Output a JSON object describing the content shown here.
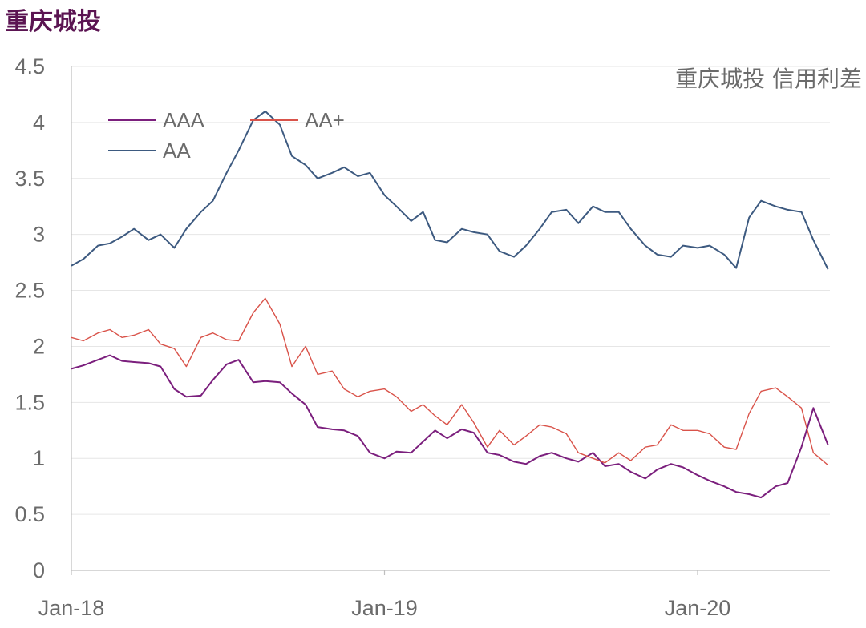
{
  "page_title": "重庆城投",
  "chart_data": {
    "type": "line",
    "title": "重庆城投 信用利差",
    "xlabel": "",
    "ylabel": "",
    "ylim": [
      0,
      4.5
    ],
    "yticks": [
      "0",
      "0.5",
      "1",
      "1.5",
      "2",
      "2.5",
      "3",
      "3.5",
      "4",
      "4.5"
    ],
    "xticks": [
      {
        "label": "Jan-18",
        "date": "2018-01-01"
      },
      {
        "label": "Jan-19",
        "date": "2019-01-01"
      },
      {
        "label": "Jan-20",
        "date": "2020-01-01"
      }
    ],
    "x_range": [
      "2018-01-01",
      "2020-06-01"
    ],
    "grid": true,
    "legend_position": "top-left",
    "series": [
      {
        "name": "AAA",
        "color": "#7b1f7d",
        "points": [
          [
            "2018-01-01",
            1.8
          ],
          [
            "2018-01-15",
            1.83
          ],
          [
            "2018-02-01",
            1.88
          ],
          [
            "2018-02-15",
            1.92
          ],
          [
            "2018-03-01",
            1.87
          ],
          [
            "2018-03-15",
            1.86
          ],
          [
            "2018-04-01",
            1.85
          ],
          [
            "2018-04-15",
            1.82
          ],
          [
            "2018-05-01",
            1.62
          ],
          [
            "2018-05-15",
            1.55
          ],
          [
            "2018-06-01",
            1.56
          ],
          [
            "2018-06-15",
            1.7
          ],
          [
            "2018-07-01",
            1.84
          ],
          [
            "2018-07-15",
            1.88
          ],
          [
            "2018-08-01",
            1.68
          ],
          [
            "2018-08-15",
            1.69
          ],
          [
            "2018-09-01",
            1.68
          ],
          [
            "2018-09-15",
            1.58
          ],
          [
            "2018-10-01",
            1.48
          ],
          [
            "2018-10-15",
            1.28
          ],
          [
            "2018-11-01",
            1.26
          ],
          [
            "2018-11-15",
            1.25
          ],
          [
            "2018-12-01",
            1.2
          ],
          [
            "2018-12-15",
            1.05
          ],
          [
            "2019-01-01",
            1.0
          ],
          [
            "2019-01-15",
            1.06
          ],
          [
            "2019-02-01",
            1.05
          ],
          [
            "2019-02-15",
            1.15
          ],
          [
            "2019-03-01",
            1.25
          ],
          [
            "2019-03-15",
            1.18
          ],
          [
            "2019-04-01",
            1.26
          ],
          [
            "2019-04-15",
            1.23
          ],
          [
            "2019-05-01",
            1.05
          ],
          [
            "2019-05-15",
            1.03
          ],
          [
            "2019-06-01",
            0.97
          ],
          [
            "2019-06-15",
            0.95
          ],
          [
            "2019-07-01",
            1.02
          ],
          [
            "2019-07-15",
            1.05
          ],
          [
            "2019-08-01",
            1.0
          ],
          [
            "2019-08-15",
            0.97
          ],
          [
            "2019-09-01",
            1.05
          ],
          [
            "2019-09-15",
            0.93
          ],
          [
            "2019-10-01",
            0.95
          ],
          [
            "2019-10-15",
            0.88
          ],
          [
            "2019-11-01",
            0.82
          ],
          [
            "2019-11-15",
            0.9
          ],
          [
            "2019-12-01",
            0.95
          ],
          [
            "2019-12-15",
            0.92
          ],
          [
            "2020-01-01",
            0.85
          ],
          [
            "2020-01-15",
            0.8
          ],
          [
            "2020-02-01",
            0.75
          ],
          [
            "2020-02-15",
            0.7
          ],
          [
            "2020-03-01",
            0.68
          ],
          [
            "2020-03-15",
            0.65
          ],
          [
            "2020-04-01",
            0.75
          ],
          [
            "2020-04-15",
            0.78
          ],
          [
            "2020-05-01",
            1.1
          ],
          [
            "2020-05-15",
            1.45
          ],
          [
            "2020-06-01",
            1.12
          ]
        ]
      },
      {
        "name": "AA+",
        "color": "#d9534a",
        "points": [
          [
            "2018-01-01",
            2.08
          ],
          [
            "2018-01-15",
            2.05
          ],
          [
            "2018-02-01",
            2.12
          ],
          [
            "2018-02-15",
            2.15
          ],
          [
            "2018-03-01",
            2.08
          ],
          [
            "2018-03-15",
            2.1
          ],
          [
            "2018-04-01",
            2.15
          ],
          [
            "2018-04-15",
            2.02
          ],
          [
            "2018-05-01",
            1.98
          ],
          [
            "2018-05-15",
            1.82
          ],
          [
            "2018-06-01",
            2.08
          ],
          [
            "2018-06-15",
            2.12
          ],
          [
            "2018-07-01",
            2.06
          ],
          [
            "2018-07-15",
            2.05
          ],
          [
            "2018-08-01",
            2.3
          ],
          [
            "2018-08-15",
            2.43
          ],
          [
            "2018-09-01",
            2.2
          ],
          [
            "2018-09-15",
            1.82
          ],
          [
            "2018-10-01",
            2.0
          ],
          [
            "2018-10-15",
            1.75
          ],
          [
            "2018-11-01",
            1.78
          ],
          [
            "2018-11-15",
            1.62
          ],
          [
            "2018-12-01",
            1.55
          ],
          [
            "2018-12-15",
            1.6
          ],
          [
            "2019-01-01",
            1.62
          ],
          [
            "2019-01-15",
            1.55
          ],
          [
            "2019-02-01",
            1.42
          ],
          [
            "2019-02-15",
            1.48
          ],
          [
            "2019-03-01",
            1.38
          ],
          [
            "2019-03-15",
            1.3
          ],
          [
            "2019-04-01",
            1.48
          ],
          [
            "2019-04-15",
            1.32
          ],
          [
            "2019-05-01",
            1.1
          ],
          [
            "2019-05-15",
            1.25
          ],
          [
            "2019-06-01",
            1.12
          ],
          [
            "2019-06-15",
            1.2
          ],
          [
            "2019-07-01",
            1.3
          ],
          [
            "2019-07-15",
            1.28
          ],
          [
            "2019-08-01",
            1.22
          ],
          [
            "2019-08-15",
            1.05
          ],
          [
            "2019-09-01",
            1.0
          ],
          [
            "2019-09-15",
            0.96
          ],
          [
            "2019-10-01",
            1.05
          ],
          [
            "2019-10-15",
            0.98
          ],
          [
            "2019-11-01",
            1.1
          ],
          [
            "2019-11-15",
            1.12
          ],
          [
            "2019-12-01",
            1.3
          ],
          [
            "2019-12-15",
            1.25
          ],
          [
            "2020-01-01",
            1.25
          ],
          [
            "2020-01-15",
            1.22
          ],
          [
            "2020-02-01",
            1.1
          ],
          [
            "2020-02-15",
            1.08
          ],
          [
            "2020-03-01",
            1.4
          ],
          [
            "2020-03-15",
            1.6
          ],
          [
            "2020-04-01",
            1.63
          ],
          [
            "2020-04-15",
            1.55
          ],
          [
            "2020-05-01",
            1.45
          ],
          [
            "2020-05-15",
            1.05
          ],
          [
            "2020-06-01",
            0.94
          ]
        ]
      },
      {
        "name": "AA",
        "color": "#3d5a80",
        "points": [
          [
            "2018-01-01",
            2.72
          ],
          [
            "2018-01-15",
            2.78
          ],
          [
            "2018-02-01",
            2.9
          ],
          [
            "2018-02-15",
            2.92
          ],
          [
            "2018-03-01",
            2.98
          ],
          [
            "2018-03-15",
            3.05
          ],
          [
            "2018-04-01",
            2.95
          ],
          [
            "2018-04-15",
            3.0
          ],
          [
            "2018-05-01",
            2.88
          ],
          [
            "2018-05-15",
            3.05
          ],
          [
            "2018-06-01",
            3.2
          ],
          [
            "2018-06-15",
            3.3
          ],
          [
            "2018-07-01",
            3.55
          ],
          [
            "2018-07-15",
            3.75
          ],
          [
            "2018-08-01",
            4.02
          ],
          [
            "2018-08-15",
            4.1
          ],
          [
            "2018-09-01",
            3.98
          ],
          [
            "2018-09-15",
            3.7
          ],
          [
            "2018-10-01",
            3.62
          ],
          [
            "2018-10-15",
            3.5
          ],
          [
            "2018-11-01",
            3.55
          ],
          [
            "2018-11-15",
            3.6
          ],
          [
            "2018-12-01",
            3.52
          ],
          [
            "2018-12-15",
            3.55
          ],
          [
            "2019-01-01",
            3.35
          ],
          [
            "2019-01-15",
            3.25
          ],
          [
            "2019-02-01",
            3.12
          ],
          [
            "2019-02-15",
            3.2
          ],
          [
            "2019-03-01",
            2.95
          ],
          [
            "2019-03-15",
            2.93
          ],
          [
            "2019-04-01",
            3.05
          ],
          [
            "2019-04-15",
            3.02
          ],
          [
            "2019-05-01",
            3.0
          ],
          [
            "2019-05-15",
            2.85
          ],
          [
            "2019-06-01",
            2.8
          ],
          [
            "2019-06-15",
            2.9
          ],
          [
            "2019-07-01",
            3.05
          ],
          [
            "2019-07-15",
            3.2
          ],
          [
            "2019-08-01",
            3.22
          ],
          [
            "2019-08-15",
            3.1
          ],
          [
            "2019-09-01",
            3.25
          ],
          [
            "2019-09-15",
            3.2
          ],
          [
            "2019-10-01",
            3.2
          ],
          [
            "2019-10-15",
            3.05
          ],
          [
            "2019-11-01",
            2.9
          ],
          [
            "2019-11-15",
            2.82
          ],
          [
            "2019-12-01",
            2.8
          ],
          [
            "2019-12-15",
            2.9
          ],
          [
            "2020-01-01",
            2.88
          ],
          [
            "2020-01-15",
            2.9
          ],
          [
            "2020-02-01",
            2.82
          ],
          [
            "2020-02-15",
            2.7
          ],
          [
            "2020-03-01",
            3.15
          ],
          [
            "2020-03-15",
            3.3
          ],
          [
            "2020-04-01",
            3.25
          ],
          [
            "2020-04-15",
            3.22
          ],
          [
            "2020-05-01",
            3.2
          ],
          [
            "2020-05-15",
            2.95
          ],
          [
            "2020-06-01",
            2.69
          ]
        ]
      }
    ]
  }
}
